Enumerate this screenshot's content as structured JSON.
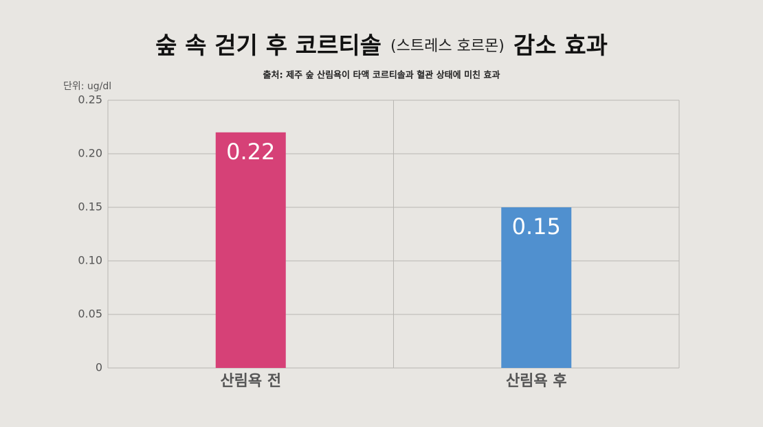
{
  "chart_data": {
    "type": "bar",
    "title": [
      "숲 속 걷기 후 코르티솔",
      "(스트레스 호르몬)",
      "감소 효과"
    ],
    "subtitle": "출처: 제주 숲 산림욕이 타액 코르티솔과 혈관 상태에 미친 효과",
    "y_axis_label": "단위: ug/dl",
    "categories": [
      "산림욕 전",
      "산림욕 후"
    ],
    "values": [
      0.22,
      0.15
    ],
    "colors": [
      "#d64177",
      "#5090cf"
    ],
    "ylim": [
      0,
      0.25
    ],
    "yticks": [
      0,
      0.05,
      {
        "value": 0.1,
        "label": "0.10"
      },
      0.15,
      {
        "value": 0.2,
        "label": "0.20"
      },
      0.25
    ],
    "grid": true
  }
}
